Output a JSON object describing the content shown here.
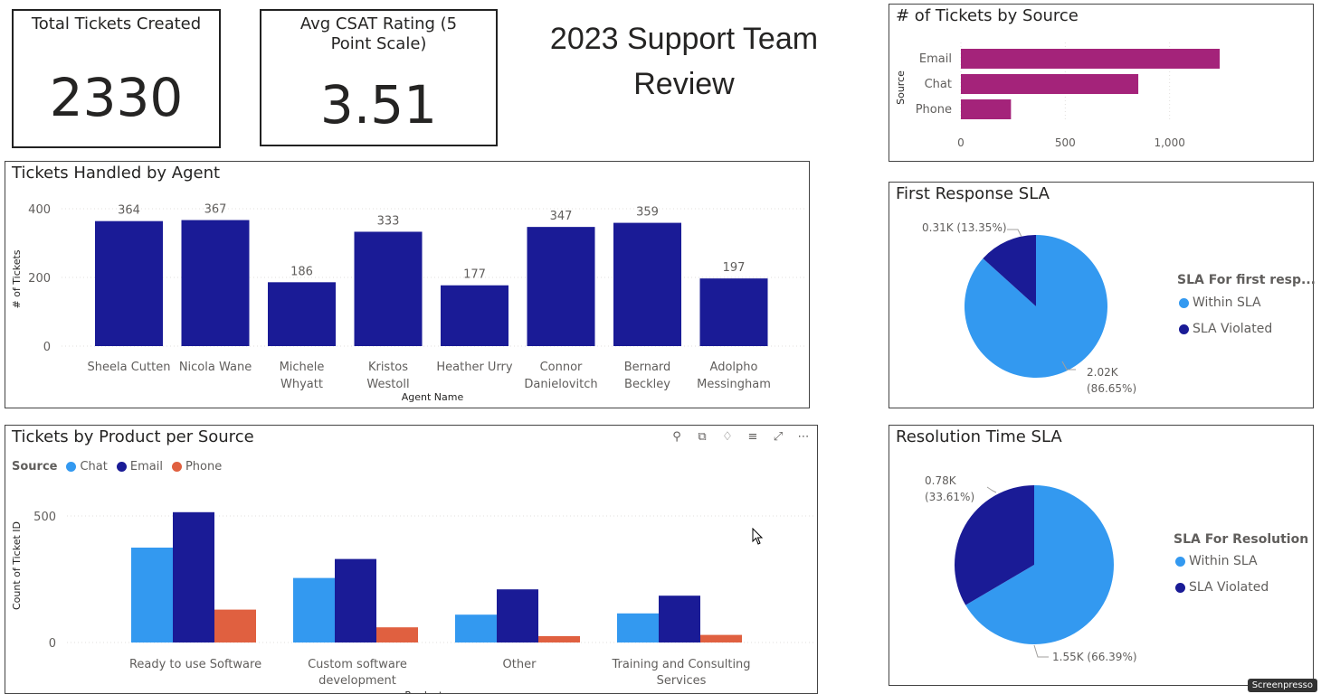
{
  "kpis": {
    "total_tickets_title": "Total Tickets Created",
    "total_tickets_value": "2330",
    "csat_title": "Avg CSAT Rating (5 Point Scale)",
    "csat_value": "3.51"
  },
  "page_title": "2023 Support Team Review",
  "colors": {
    "dark_blue": "#1a1b96",
    "light_blue": "#3399f0",
    "orange": "#e06040",
    "purple": "#a4237a"
  },
  "toolbar_icons": [
    "pin-icon",
    "copy-icon",
    "bell-icon",
    "filter-icon",
    "focus-mode-icon",
    "more-options-icon"
  ],
  "chart_data": [
    {
      "id": "tickets_by_source",
      "type": "bar",
      "orientation": "horizontal",
      "title": "# of Tickets by Source",
      "ylabel": "Source",
      "categories": [
        "Email",
        "Chat",
        "Phone"
      ],
      "values": [
        1240,
        850,
        240
      ],
      "xlim": [
        0,
        1500
      ],
      "xticks": [
        "0",
        "500",
        "1,000"
      ],
      "grid": true
    },
    {
      "id": "tickets_by_agent",
      "type": "bar",
      "title": "Tickets Handled by Agent",
      "xlabel": "Agent Name",
      "ylabel": "# of Tickets",
      "categories": [
        "Sheela Cutten",
        "Nicola Wane",
        "Michele Whyatt",
        "Kristos Westoll",
        "Heather Urry",
        "Connor Danielovitch",
        "Bernard Beckley",
        "Adolpho Messingham"
      ],
      "values": [
        364,
        367,
        186,
        333,
        177,
        347,
        359,
        197
      ],
      "ylim": [
        0,
        400
      ],
      "yticks": [
        "0",
        "200",
        "400"
      ],
      "grid": true
    },
    {
      "id": "first_response_sla",
      "type": "pie",
      "title": "First Response SLA",
      "legend_title": "SLA For first resp...",
      "legend_position": "right",
      "slices": [
        {
          "name": "Within SLA",
          "value": 2.02,
          "label": "2.02K (86.65%)",
          "label_line1": "2.02K",
          "label_line2": "(86.65%)",
          "color": "#3399f0"
        },
        {
          "name": "SLA Violated",
          "value": 0.31,
          "label": "0.31K (13.35%)",
          "label_line1": "0.31K (13.35%)",
          "label_line2": "",
          "color": "#1a1b96"
        }
      ]
    },
    {
      "id": "resolution_time_sla",
      "type": "pie",
      "title": "Resolution Time SLA",
      "legend_title": "SLA For Resolution",
      "legend_position": "right",
      "slices": [
        {
          "name": "Within SLA",
          "value": 1.55,
          "label": "1.55K (66.39%)",
          "label_line1": "1.55K (66.39%)",
          "label_line2": "",
          "color": "#3399f0"
        },
        {
          "name": "SLA Violated",
          "value": 0.78,
          "label": "0.78K (33.61%)",
          "label_line1": "0.78K",
          "label_line2": "(33.61%)",
          "color": "#1a1b96"
        }
      ]
    },
    {
      "id": "tickets_by_product_per_source",
      "type": "bar",
      "title": "Tickets by Product per Source",
      "legend_title": "Source",
      "legend_position": "top-left",
      "xlabel": "Product group",
      "ylabel": "Count of Ticket ID",
      "categories": [
        "Ready to use Software",
        "Custom software development",
        "Other",
        "Training and Consulting Services"
      ],
      "category_lines": [
        [
          "Ready to use Software"
        ],
        [
          "Custom software",
          "development"
        ],
        [
          "Other"
        ],
        [
          "Training and Consulting",
          "Services"
        ]
      ],
      "series": [
        {
          "name": "Chat",
          "color": "#3399f0",
          "values": [
            375,
            255,
            110,
            115
          ]
        },
        {
          "name": "Email",
          "color": "#1a1b96",
          "values": [
            515,
            330,
            210,
            185
          ]
        },
        {
          "name": "Phone",
          "color": "#e06040",
          "values": [
            130,
            60,
            25,
            30
          ]
        }
      ],
      "ylim": [
        0,
        500
      ],
      "yticks": [
        "0",
        "500"
      ],
      "grid": true
    }
  ],
  "watermark": "Screenpresso"
}
